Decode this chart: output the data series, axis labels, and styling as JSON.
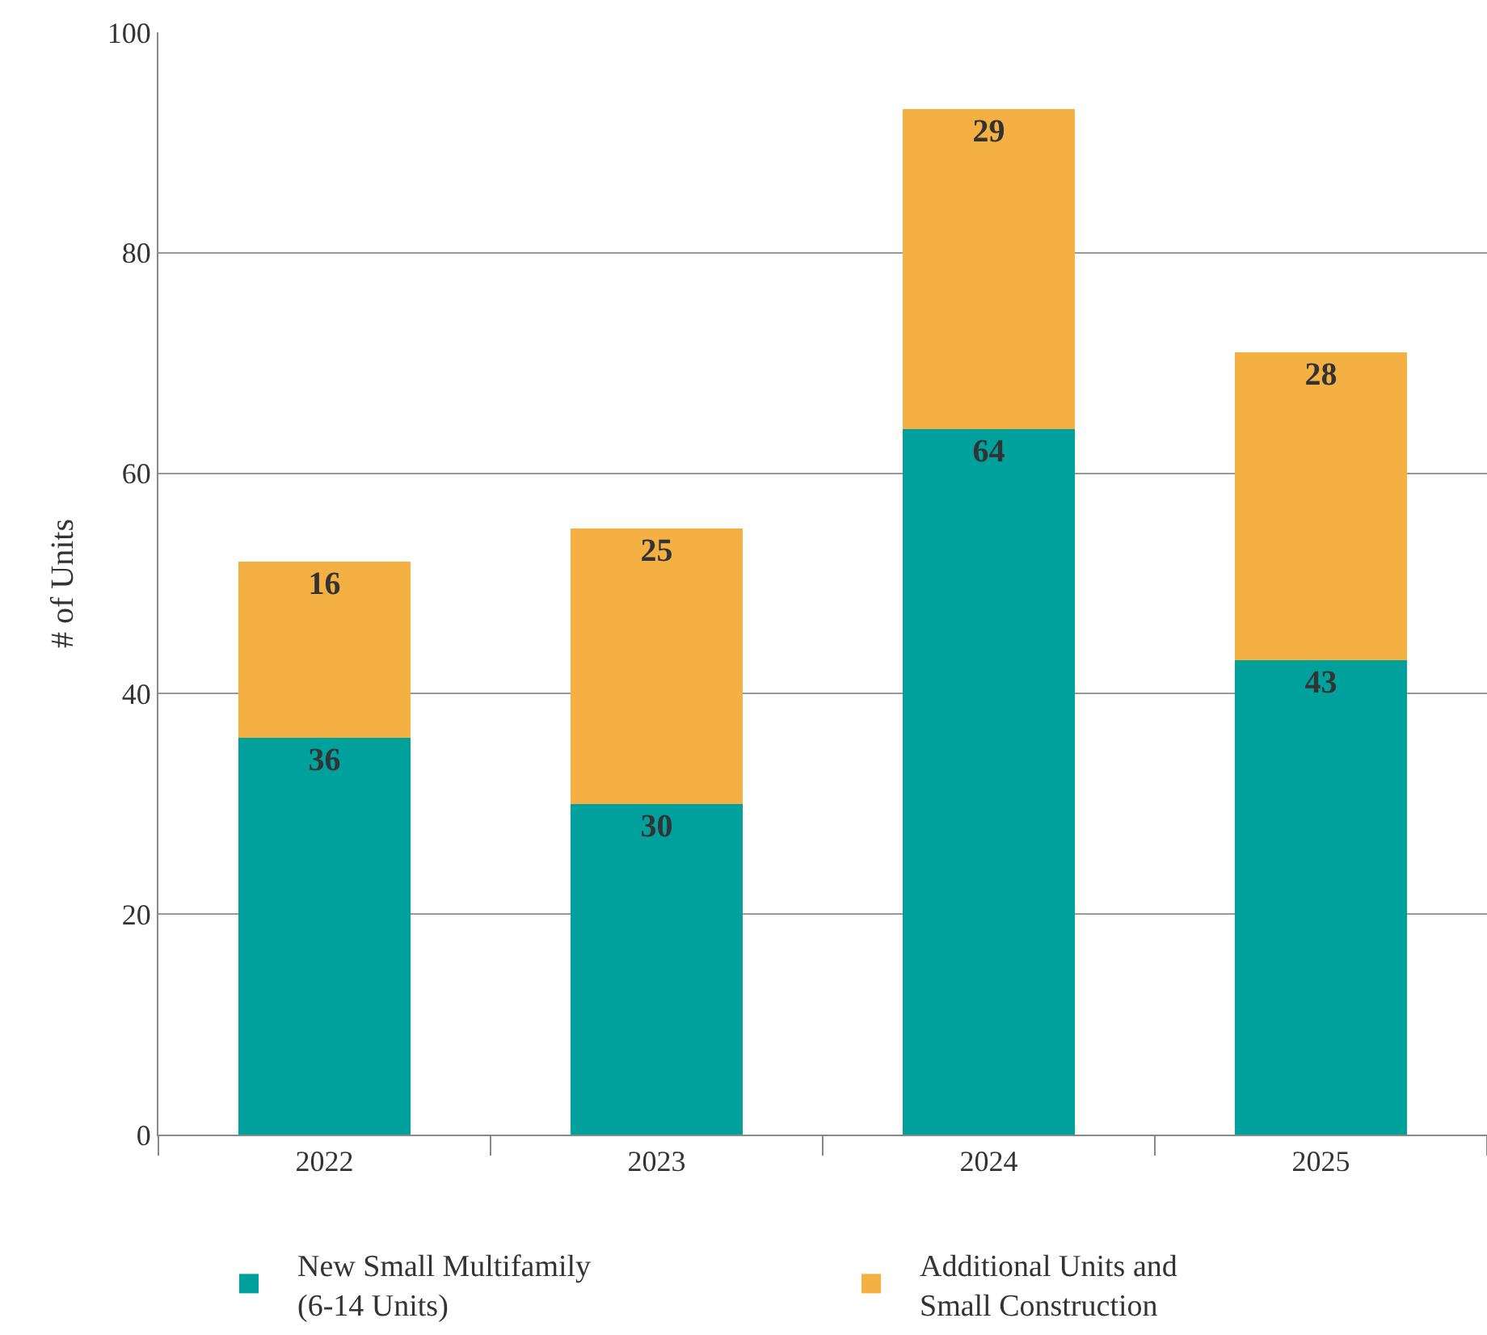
{
  "chart_data": {
    "type": "bar",
    "stacked": true,
    "ylabel": "# of Units",
    "categories": [
      "2022",
      "2023",
      "2024",
      "2025"
    ],
    "series": [
      {
        "name": "New Small Multifamily\n(6-14 Units)",
        "color": "#00a19c",
        "values": [
          36,
          30,
          64,
          43
        ]
      },
      {
        "name": "Additional Units and\nSmall Construction",
        "color": "#f4b042",
        "values": [
          16,
          25,
          29,
          28
        ]
      }
    ],
    "data_labels": true,
    "ylim": [
      0,
      100
    ],
    "yticks": [
      0,
      20,
      40,
      60,
      80,
      100
    ],
    "grid": "y",
    "legend": "bottom"
  }
}
